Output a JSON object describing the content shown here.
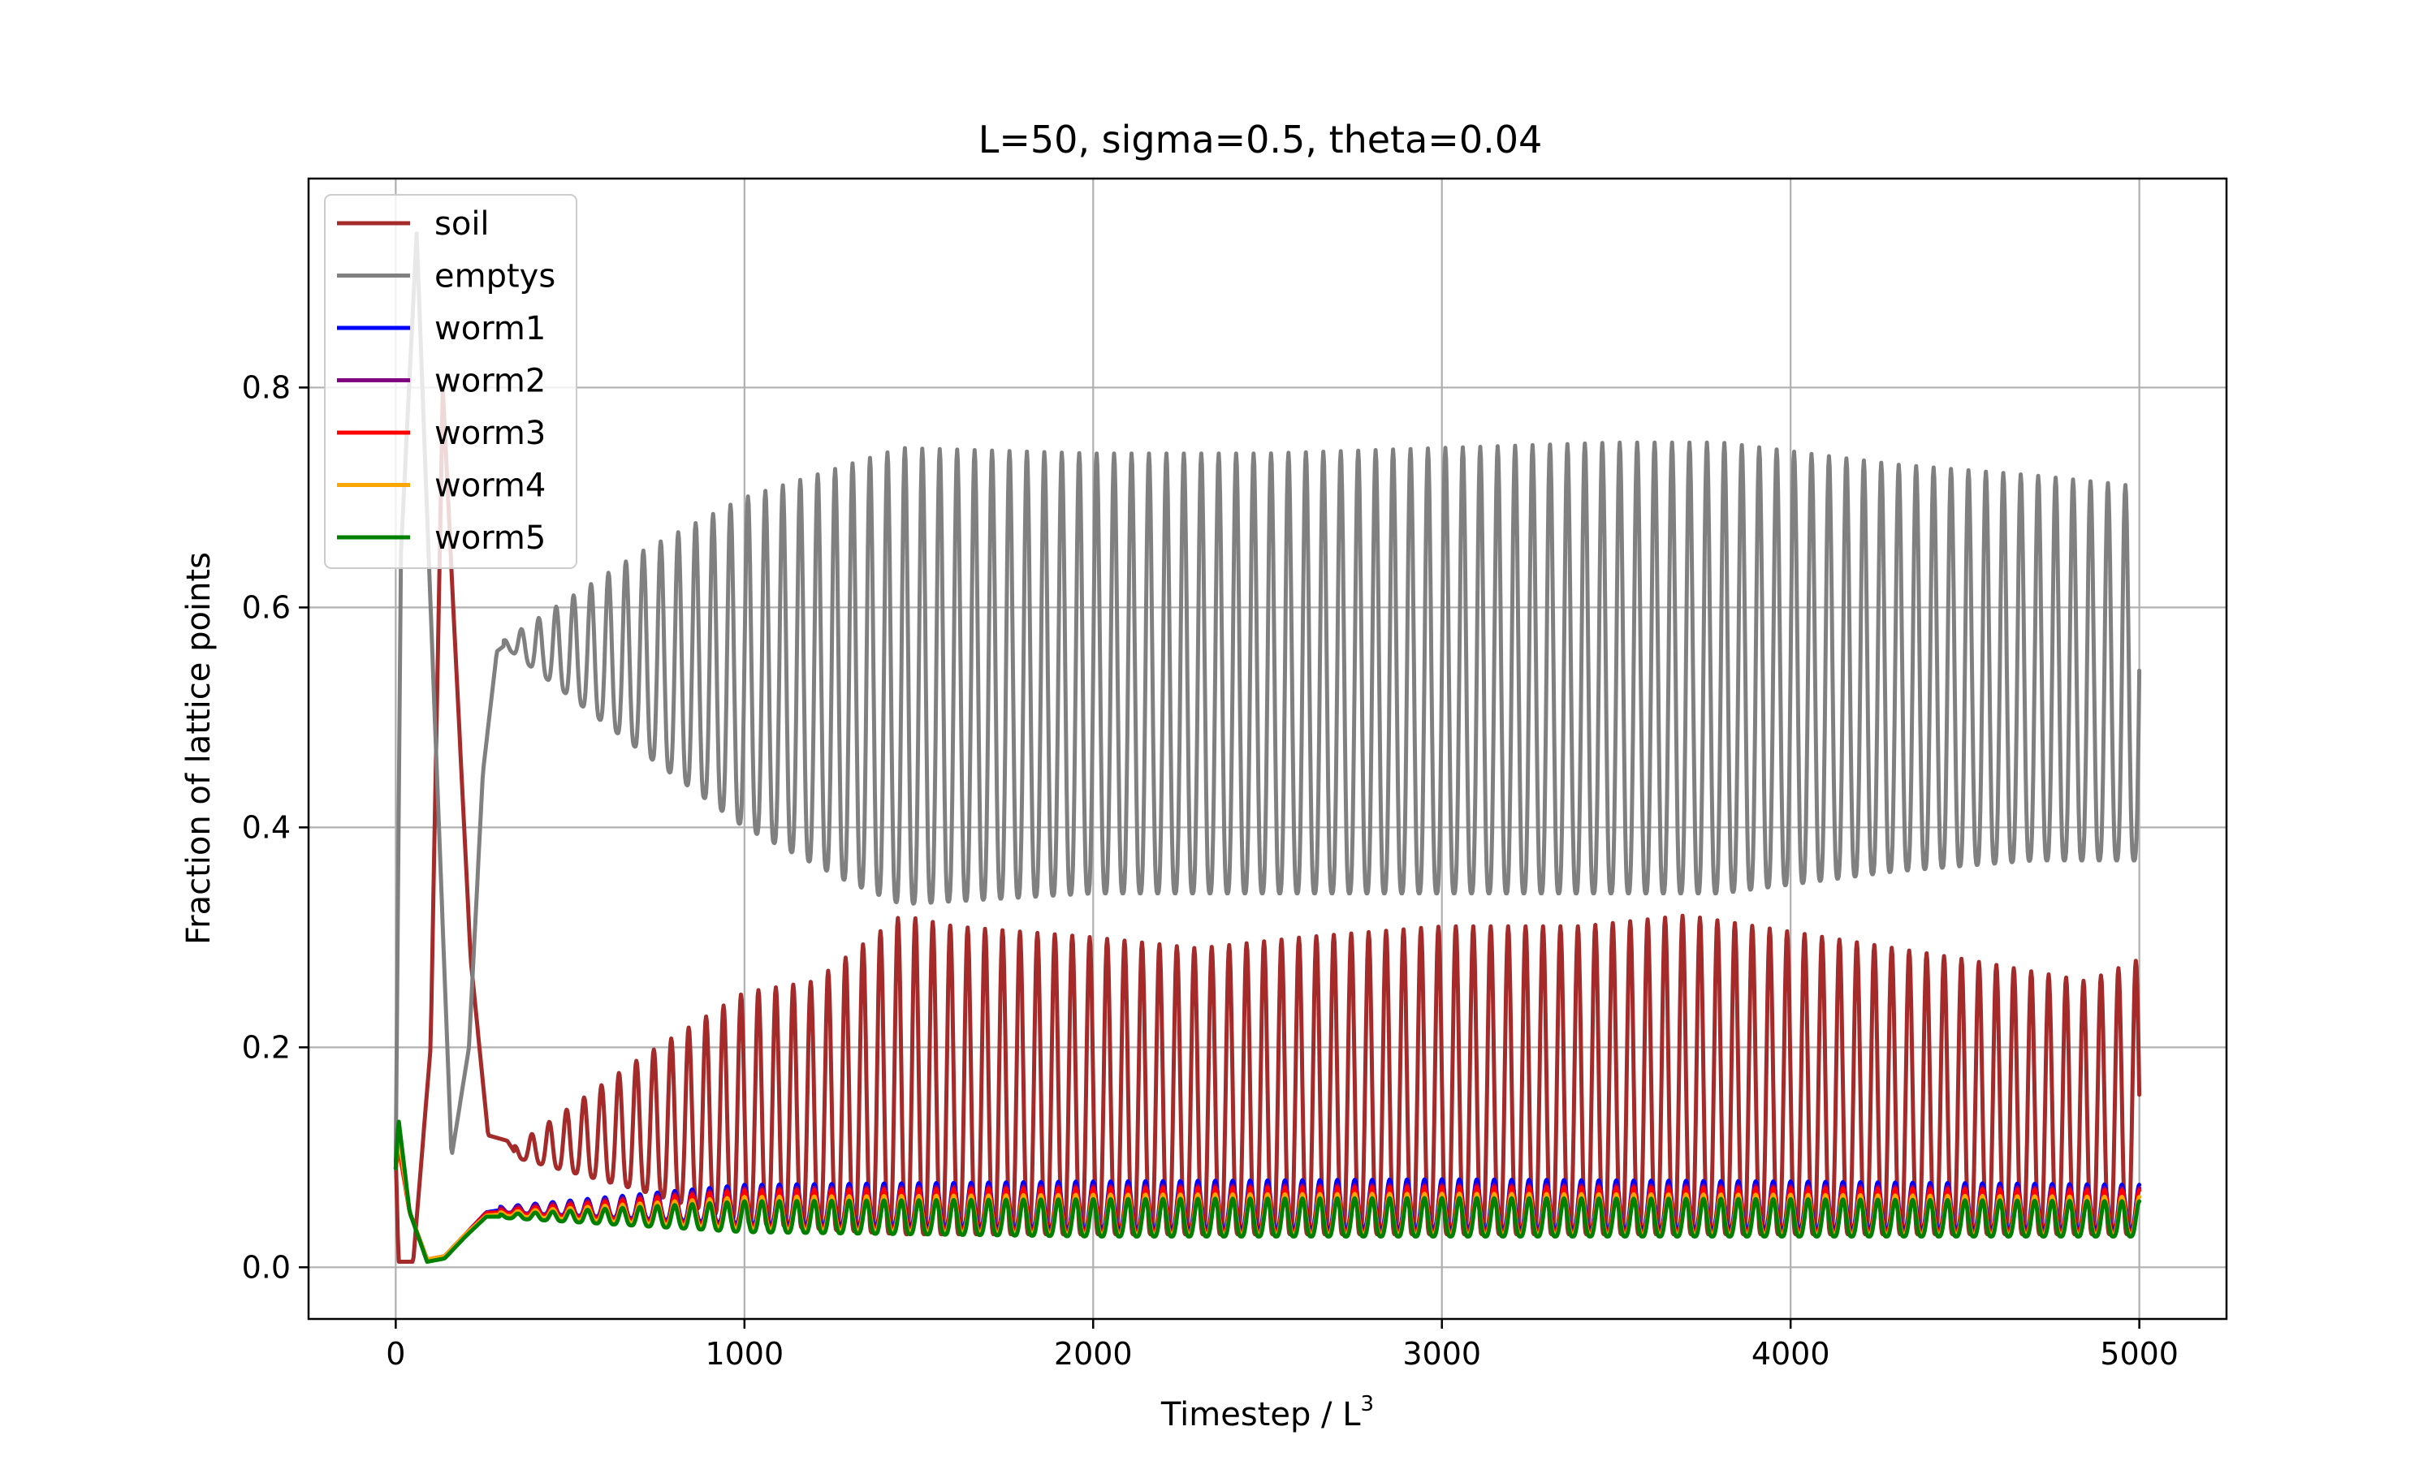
{
  "chart_data": {
    "type": "line",
    "title": "L=50, sigma=0.5, theta=0.04",
    "xlabel": "Timestep / L",
    "xlabel_superscript": "3",
    "ylabel": "Fraction of lattice points",
    "xlim": [
      -250,
      5250
    ],
    "ylim": [
      -0.047,
      0.99
    ],
    "xticks": [
      0,
      1000,
      2000,
      3000,
      4000,
      5000
    ],
    "xtick_labels": [
      "0",
      "1000",
      "2000",
      "3000",
      "4000",
      "5000"
    ],
    "yticks": [
      0.0,
      0.2,
      0.4,
      0.6,
      0.8
    ],
    "ytick_labels": [
      "0.0",
      "0.2",
      "0.4",
      "0.6",
      "0.8"
    ],
    "grid": true,
    "legend_position": "upper-left",
    "x_range": [
      0,
      5000
    ],
    "oscillation_period": 50,
    "series": [
      {
        "name": "soil",
        "color": "#a52a2a",
        "keypoints": [
          [
            0,
            0.1
          ],
          [
            8,
            0.005
          ],
          [
            50,
            0.005
          ],
          [
            100,
            0.2
          ],
          [
            135,
            0.8
          ],
          [
            165,
            0.6
          ],
          [
            215,
            0.28
          ],
          [
            265,
            0.12
          ],
          [
            320,
            0.115
          ],
          [
            340,
            0.105
          ]
        ],
        "osc": [
          [
            340,
            0.1,
            0.11
          ],
          [
            700,
            0.07,
            0.19
          ],
          [
            1000,
            0.04,
            0.25
          ],
          [
            1200,
            0.035,
            0.26
          ],
          [
            1450,
            0.03,
            0.32
          ],
          [
            1600,
            0.03,
            0.31
          ],
          [
            2000,
            0.03,
            0.3
          ],
          [
            2300,
            0.03,
            0.29
          ],
          [
            2600,
            0.03,
            0.3
          ],
          [
            3000,
            0.03,
            0.31
          ],
          [
            3400,
            0.03,
            0.31
          ],
          [
            3700,
            0.03,
            0.32
          ],
          [
            4100,
            0.03,
            0.3
          ],
          [
            4500,
            0.03,
            0.28
          ],
          [
            4850,
            0.03,
            0.26
          ],
          [
            5000,
            0.03,
            0.28
          ]
        ]
      },
      {
        "name": "emptys",
        "color": "#808080",
        "keypoints": [
          [
            0,
            0.1
          ],
          [
            15,
            0.65
          ],
          [
            60,
            0.94
          ],
          [
            100,
            0.6
          ],
          [
            160,
            0.1
          ],
          [
            210,
            0.2
          ],
          [
            250,
            0.45
          ],
          [
            290,
            0.56
          ],
          [
            310,
            0.565
          ]
        ],
        "osc": [
          [
            310,
            0.565,
            0.57
          ],
          [
            700,
            0.47,
            0.65
          ],
          [
            1000,
            0.4,
            0.7
          ],
          [
            1300,
            0.35,
            0.73
          ],
          [
            1450,
            0.33,
            0.745
          ],
          [
            2000,
            0.34,
            0.74
          ],
          [
            2500,
            0.34,
            0.74
          ],
          [
            3000,
            0.34,
            0.745
          ],
          [
            3500,
            0.34,
            0.75
          ],
          [
            3800,
            0.34,
            0.75
          ],
          [
            4300,
            0.36,
            0.73
          ],
          [
            4700,
            0.37,
            0.72
          ],
          [
            5000,
            0.37,
            0.71
          ]
        ]
      },
      {
        "name": "worm1",
        "color": "#0000ff",
        "keypoints": [
          [
            0,
            0.09
          ],
          [
            8,
            0.12
          ],
          [
            40,
            0.05
          ],
          [
            90,
            0.007
          ],
          [
            140,
            0.01
          ],
          [
            200,
            0.03
          ],
          [
            260,
            0.05
          ],
          [
            300,
            0.052
          ]
        ],
        "osc": [
          [
            300,
            0.05,
            0.055
          ],
          [
            1000,
            0.04,
            0.075
          ],
          [
            2000,
            0.035,
            0.078
          ],
          [
            3000,
            0.035,
            0.08
          ],
          [
            4000,
            0.035,
            0.078
          ],
          [
            5000,
            0.035,
            0.075
          ]
        ]
      },
      {
        "name": "worm2",
        "color": "#800080",
        "keypoints": [
          [
            0,
            0.09
          ],
          [
            8,
            0.115
          ],
          [
            40,
            0.05
          ],
          [
            90,
            0.007
          ],
          [
            140,
            0.01
          ],
          [
            200,
            0.03
          ],
          [
            260,
            0.05
          ],
          [
            300,
            0.05
          ]
        ],
        "osc": [
          [
            300,
            0.05,
            0.054
          ],
          [
            1000,
            0.038,
            0.072
          ],
          [
            2000,
            0.033,
            0.074
          ],
          [
            3000,
            0.033,
            0.075
          ],
          [
            4000,
            0.033,
            0.074
          ],
          [
            5000,
            0.033,
            0.072
          ]
        ]
      },
      {
        "name": "worm3",
        "color": "#ff0000",
        "keypoints": [
          [
            0,
            0.09
          ],
          [
            8,
            0.11
          ],
          [
            40,
            0.05
          ],
          [
            90,
            0.007
          ],
          [
            140,
            0.01
          ],
          [
            200,
            0.03
          ],
          [
            260,
            0.049
          ],
          [
            300,
            0.05
          ]
        ],
        "osc": [
          [
            300,
            0.049,
            0.052
          ],
          [
            1000,
            0.037,
            0.07
          ],
          [
            2000,
            0.032,
            0.072
          ],
          [
            3000,
            0.032,
            0.073
          ],
          [
            4000,
            0.032,
            0.072
          ],
          [
            5000,
            0.032,
            0.07
          ]
        ]
      },
      {
        "name": "worm4",
        "color": "#ffa500",
        "keypoints": [
          [
            0,
            0.09
          ],
          [
            8,
            0.12
          ],
          [
            40,
            0.05
          ],
          [
            90,
            0.007
          ],
          [
            140,
            0.01
          ],
          [
            200,
            0.03
          ],
          [
            260,
            0.047
          ],
          [
            300,
            0.048
          ]
        ],
        "osc": [
          [
            300,
            0.047,
            0.05
          ],
          [
            1000,
            0.035,
            0.064
          ],
          [
            2000,
            0.03,
            0.066
          ],
          [
            3000,
            0.03,
            0.067
          ],
          [
            4000,
            0.03,
            0.066
          ],
          [
            5000,
            0.03,
            0.064
          ]
        ]
      },
      {
        "name": "worm5",
        "color": "#008000",
        "keypoints": [
          [
            0,
            0.09
          ],
          [
            8,
            0.135
          ],
          [
            40,
            0.05
          ],
          [
            90,
            0.005
          ],
          [
            140,
            0.008
          ],
          [
            200,
            0.028
          ],
          [
            260,
            0.046
          ],
          [
            300,
            0.046
          ]
        ],
        "osc": [
          [
            300,
            0.045,
            0.048
          ],
          [
            1000,
            0.032,
            0.06
          ],
          [
            2000,
            0.028,
            0.062
          ],
          [
            3000,
            0.028,
            0.063
          ],
          [
            4000,
            0.028,
            0.062
          ],
          [
            5000,
            0.028,
            0.06
          ]
        ]
      }
    ]
  }
}
